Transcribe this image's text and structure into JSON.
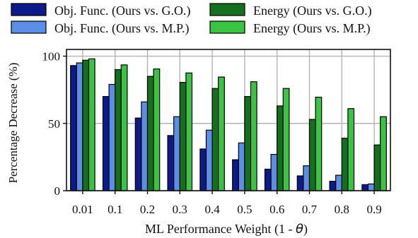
{
  "chart_data": {
    "type": "bar",
    "title": "",
    "xlabel_prefix": "ML Performance Weight (1 - ",
    "xlabel_symbol": "θ",
    "xlabel_suffix": ")",
    "ylabel": "Percentage Decrease (%)",
    "ylim": [
      0,
      105
    ],
    "yticks": [
      0,
      50,
      100
    ],
    "grid": true,
    "legend_position": "top, two columns",
    "categories": [
      "0.01",
      "0.1",
      "0.2",
      "0.3",
      "0.4",
      "0.5",
      "0.6",
      "0.7",
      "0.8",
      "0.9"
    ],
    "series": [
      {
        "name": "Obj. Func. (Ours vs. G.O.)",
        "color": "#0d1a8a",
        "values": [
          93,
          70,
          54,
          41,
          31,
          23,
          16,
          11,
          7,
          4.5
        ]
      },
      {
        "name": "Obj. Func. (Ours vs. M.P.)",
        "color": "#5b8ee6",
        "values": [
          95,
          79,
          66,
          55,
          45,
          35.5,
          27,
          18.5,
          11.5,
          5
        ]
      },
      {
        "name": "Energy (Ours vs. G.O.)",
        "color": "#14701e",
        "values": [
          97,
          90,
          85,
          80.5,
          76,
          70,
          63,
          53,
          39,
          34
        ]
      },
      {
        "name": "Energy (Ours vs. M.P.)",
        "color": "#3bc443",
        "values": [
          98,
          93.5,
          90.5,
          87.5,
          84.5,
          81,
          76,
          69.5,
          61,
          55
        ]
      }
    ]
  }
}
